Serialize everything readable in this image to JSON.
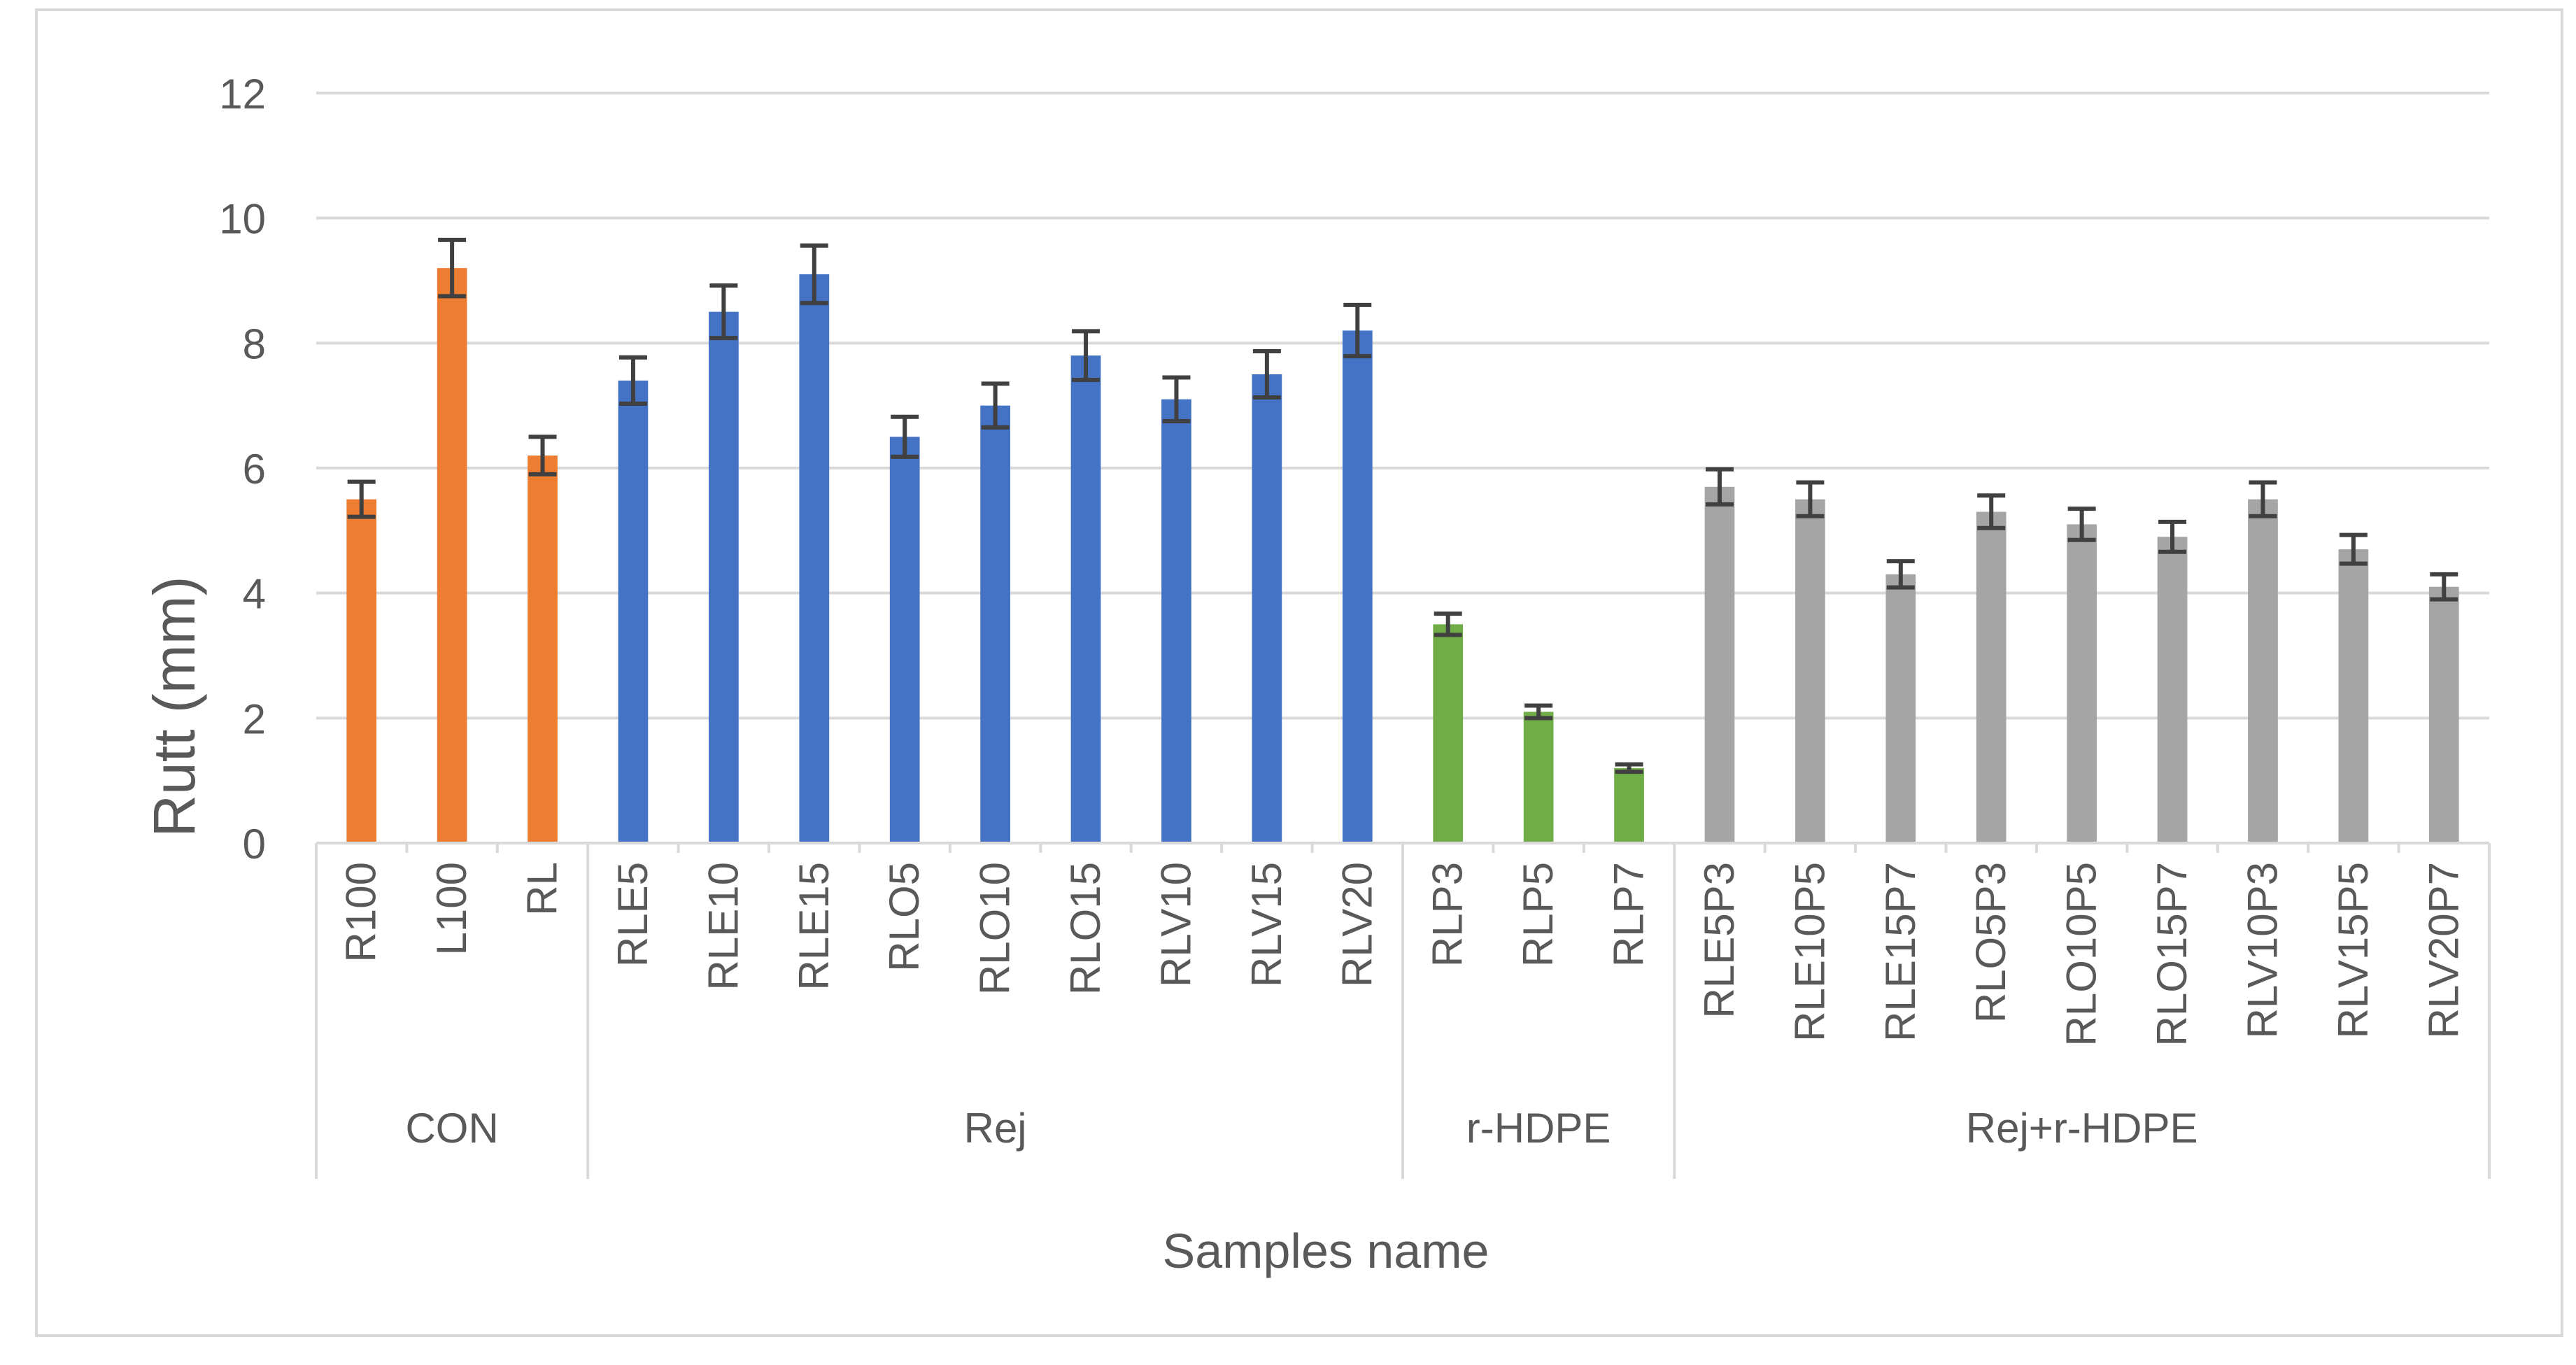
{
  "chart_data": {
    "type": "bar",
    "ylabel": "Rutt (mm)",
    "xlabel": "Samples name",
    "ylim": [
      0,
      12
    ],
    "yticks": [
      "0",
      "2",
      "4",
      "6",
      "8",
      "10",
      "12"
    ],
    "ytick_values": [
      0,
      2,
      4,
      6,
      8,
      10,
      12
    ],
    "grid": "horizontal",
    "legend": "none",
    "groups": [
      {
        "name": "CON",
        "color": "#ED7D31",
        "categories": [
          "R100",
          "L100",
          "RL"
        ],
        "values": [
          5.5,
          9.2,
          6.2
        ],
        "errors": [
          0.28,
          0.45,
          0.3
        ]
      },
      {
        "name": "Rej",
        "color": "#4472C4",
        "categories": [
          "RLE5",
          "RLE10",
          "RLE15",
          "RLO5",
          "RLO10",
          "RLO15",
          "RLV10",
          "RLV15",
          "RLV20"
        ],
        "values": [
          7.4,
          8.5,
          9.1,
          6.5,
          7.0,
          7.8,
          7.1,
          7.5,
          8.2
        ],
        "errors": [
          0.37,
          0.42,
          0.46,
          0.32,
          0.35,
          0.39,
          0.35,
          0.37,
          0.41
        ]
      },
      {
        "name": "r-HDPE",
        "color": "#70AD47",
        "categories": [
          "RLP3",
          "RLP5",
          "RLP7"
        ],
        "values": [
          3.5,
          2.1,
          1.2
        ],
        "errors": [
          0.17,
          0.1,
          0.06
        ]
      },
      {
        "name": "Rej+r-HDPE",
        "color": "#A5A5A5",
        "categories": [
          "RLE5P3",
          "RLE10P5",
          "RLE15P7",
          "RLO5P3",
          "RLO10P5",
          "RLO15P7",
          "RLV10P3",
          "RLV15P5",
          "RLV20P7"
        ],
        "values": [
          5.7,
          5.5,
          4.3,
          5.3,
          5.1,
          4.9,
          5.5,
          4.7,
          4.1
        ],
        "errors": [
          0.28,
          0.27,
          0.21,
          0.26,
          0.25,
          0.24,
          0.27,
          0.23,
          0.2
        ]
      }
    ]
  }
}
